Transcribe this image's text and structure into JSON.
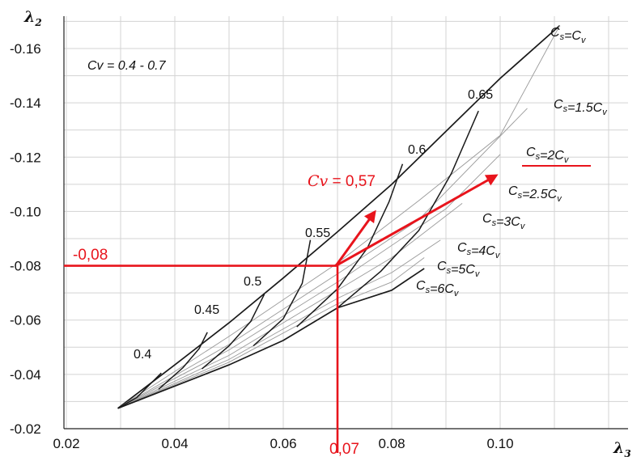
{
  "chart_data": {
    "type": "line",
    "xlabel_main": "λ",
    "xlabel_sub": "3",
    "ylabel_main": "λ",
    "ylabel_sub": "2",
    "xlim": [
      0.02,
      0.11
    ],
    "ylim": [
      -0.02,
      -0.17
    ],
    "x_ticks": [
      "0.02",
      "0.04",
      "0.06",
      "0.08",
      "0.10"
    ],
    "y_ticks": [
      "-0.02",
      "-0.04",
      "-0.06",
      "-0.08",
      "-0.10",
      "-0.12",
      "-0.14",
      "-0.16"
    ],
    "grid": true,
    "annotation_range": "Cv = 0.4 - 0.7",
    "cs_series": [
      {
        "name": "Cs=Cv",
        "points": [
          [
            0.0295,
            -0.0275
          ],
          [
            0.04,
            -0.0435
          ],
          [
            0.05,
            -0.059
          ],
          [
            0.06,
            -0.0755
          ],
          [
            0.07,
            -0.0925
          ],
          [
            0.08,
            -0.11
          ],
          [
            0.09,
            -0.1295
          ],
          [
            0.1,
            -0.149
          ],
          [
            0.111,
            -0.1685
          ]
        ]
      },
      {
        "name": "Cs=1.5Cv",
        "points": [
          [
            0.0295,
            -0.0275
          ],
          [
            0.05,
            -0.054
          ],
          [
            0.07,
            -0.081
          ],
          [
            0.085,
            -0.104
          ],
          [
            0.1,
            -0.128
          ],
          [
            0.111,
            -0.1685
          ]
        ]
      },
      {
        "name": "Cs=2Cv",
        "points": [
          [
            0.0295,
            -0.0275
          ],
          [
            0.05,
            -0.051
          ],
          [
            0.07,
            -0.077
          ],
          [
            0.085,
            -0.097
          ],
          [
            0.105,
            -0.138
          ]
        ]
      },
      {
        "name": "Cs=2.5Cv",
        "points": [
          [
            0.0295,
            -0.0275
          ],
          [
            0.05,
            -0.049
          ],
          [
            0.07,
            -0.074
          ],
          [
            0.09,
            -0.101
          ],
          [
            0.1,
            -0.121
          ]
        ]
      },
      {
        "name": "Cs=3Cv",
        "points": [
          [
            0.0295,
            -0.0275
          ],
          [
            0.05,
            -0.047
          ],
          [
            0.07,
            -0.071
          ],
          [
            0.08,
            -0.083
          ],
          [
            0.093,
            -0.103
          ]
        ]
      },
      {
        "name": "Cs=4Cv",
        "points": [
          [
            0.0295,
            -0.0275
          ],
          [
            0.05,
            -0.0455
          ],
          [
            0.07,
            -0.068
          ],
          [
            0.08,
            -0.0775
          ],
          [
            0.089,
            -0.0895
          ]
        ]
      },
      {
        "name": "Cs=5Cv",
        "points": [
          [
            0.0295,
            -0.0275
          ],
          [
            0.05,
            -0.0445
          ],
          [
            0.07,
            -0.066
          ],
          [
            0.08,
            -0.074
          ],
          [
            0.086,
            -0.083
          ]
        ]
      },
      {
        "name": "Cs=6Cv",
        "points": [
          [
            0.0295,
            -0.0275
          ],
          [
            0.05,
            -0.0435
          ],
          [
            0.06,
            -0.0525
          ],
          [
            0.07,
            -0.0645
          ],
          [
            0.08,
            -0.071
          ],
          [
            0.086,
            -0.079
          ]
        ]
      }
    ],
    "cs_labels": [
      "Cs=Cv",
      "Cs=1.5Cv",
      "Cs=2Cv",
      "Cs=2.5Cv",
      "Cs=3Cv",
      "Cs=4Cv",
      "Cs=5Cv",
      "Cs=6Cv"
    ],
    "cv_series": [
      {
        "name": "0.4",
        "points": [
          [
            0.0295,
            -0.0275
          ],
          [
            0.033,
            -0.0315
          ],
          [
            0.0355,
            -0.0365
          ],
          [
            0.0375,
            -0.0405
          ]
        ]
      },
      {
        "name": "0.45",
        "points": [
          [
            0.037,
            -0.0345
          ],
          [
            0.0415,
            -0.0425
          ],
          [
            0.0445,
            -0.0495
          ],
          [
            0.046,
            -0.0555
          ]
        ]
      },
      {
        "name": "0.5",
        "points": [
          [
            0.045,
            -0.042
          ],
          [
            0.05,
            -0.0505
          ],
          [
            0.054,
            -0.0595
          ],
          [
            0.0565,
            -0.0695
          ]
        ]
      },
      {
        "name": "0.55",
        "points": [
          [
            0.0545,
            -0.0505
          ],
          [
            0.06,
            -0.0605
          ],
          [
            0.0635,
            -0.0735
          ],
          [
            0.065,
            -0.0895
          ]
        ]
      },
      {
        "name": "0.6",
        "points": [
          [
            0.0625,
            -0.0575
          ],
          [
            0.07,
            -0.0715
          ],
          [
            0.0755,
            -0.0865
          ],
          [
            0.0795,
            -0.1035
          ],
          [
            0.082,
            -0.1175
          ]
        ]
      },
      {
        "name": "0.65",
        "points": [
          [
            0.07,
            -0.0645
          ],
          [
            0.078,
            -0.078
          ],
          [
            0.085,
            -0.093
          ],
          [
            0.091,
            -0.114
          ],
          [
            0.096,
            -0.137
          ]
        ]
      }
    ],
    "cv_labels": [
      "0.4",
      "0.45",
      "0.5",
      "0.55",
      "0.6",
      "0.65"
    ],
    "example": {
      "x_value": 0.07,
      "y_value": -0.08,
      "x_label": "0,07",
      "y_label": "-0,08",
      "cv_label_prefix": "Cv",
      "cv_label_value": " = 0,57",
      "color": "#e8141c"
    }
  }
}
